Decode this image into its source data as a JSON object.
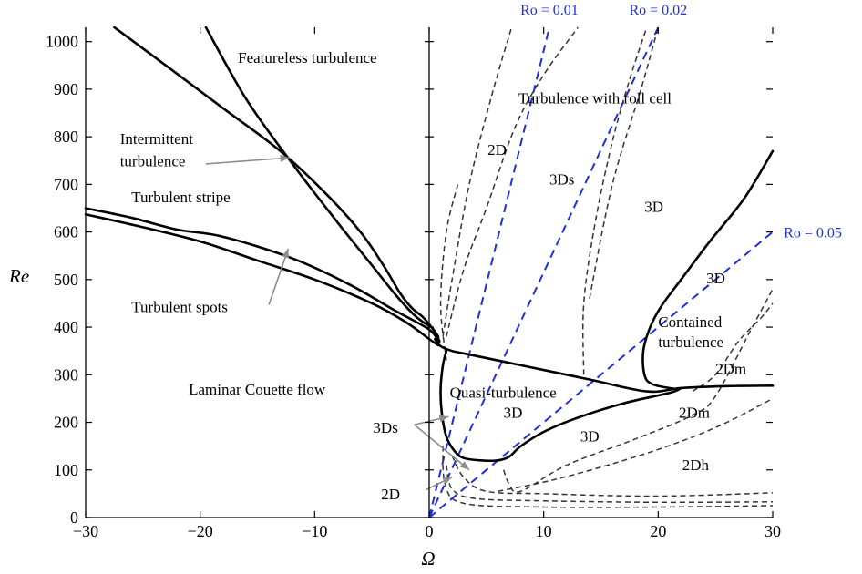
{
  "chart_data": {
    "type": "line",
    "title": "",
    "xlabel": "Ω",
    "ylabel": "Re",
    "xlim": [
      -30,
      30
    ],
    "ylim": [
      0,
      1030
    ],
    "x_ticks": [
      -30,
      -20,
      -10,
      0,
      10,
      20,
      30
    ],
    "x_tick_labels": [
      "−30",
      "−20",
      "−10",
      "0",
      "10",
      "20",
      "30"
    ],
    "y_ticks": [
      0,
      100,
      200,
      300,
      400,
      500,
      600,
      700,
      800,
      900,
      1000
    ],
    "y_tick_labels": [
      "0",
      "100",
      "200",
      "300",
      "400",
      "500",
      "600",
      "700",
      "800",
      "900",
      "1000"
    ],
    "grid": false,
    "colors": {
      "solid": "#000000",
      "dashed": "#333333",
      "ro": "#1f2fd6",
      "arrow": "#8c8c8c"
    },
    "solid_curves": [
      {
        "id": "intermittent-upper",
        "points": [
          [
            -19.5,
            1030
          ],
          [
            -16,
            880
          ],
          [
            -12,
            745
          ],
          [
            -8,
            620
          ],
          [
            -5,
            530
          ],
          [
            -3,
            470
          ],
          [
            -1.5,
            430
          ],
          [
            -0.5,
            410
          ],
          [
            0.2,
            400
          ],
          [
            0.8,
            380
          ]
        ]
      },
      {
        "id": "intermittent-lower",
        "points": [
          [
            -27.5,
            1030
          ],
          [
            -23,
            950
          ],
          [
            -18,
            860
          ],
          [
            -13,
            770
          ],
          [
            -9,
            680
          ],
          [
            -6,
            600
          ],
          [
            -4,
            530
          ],
          [
            -2.5,
            470
          ],
          [
            -1.5,
            440
          ],
          [
            -0.5,
            420
          ],
          [
            0.5,
            390
          ],
          [
            0.9,
            370
          ]
        ]
      },
      {
        "id": "stripe-upper",
        "points": [
          [
            -30,
            650
          ],
          [
            -26,
            630
          ],
          [
            -22,
            605
          ],
          [
            -18,
            590
          ],
          [
            -12,
            545
          ],
          [
            -7,
            490
          ],
          [
            -3,
            435
          ],
          [
            0,
            395
          ],
          [
            0.8,
            370
          ]
        ]
      },
      {
        "id": "stripe-lower",
        "points": [
          [
            -30,
            637
          ],
          [
            -25,
            610
          ],
          [
            -20,
            580
          ],
          [
            -15,
            540
          ],
          [
            -10,
            500
          ],
          [
            -5,
            450
          ],
          [
            -2,
            410
          ],
          [
            0,
            375
          ],
          [
            0.8,
            362
          ]
        ]
      },
      {
        "id": "quasi-upper",
        "points": [
          [
            0.5,
            375
          ],
          [
            1,
            360
          ],
          [
            2,
            350
          ],
          [
            3,
            345
          ],
          [
            8,
            320
          ],
          [
            14,
            290
          ],
          [
            19,
            265
          ],
          [
            22,
            272
          ],
          [
            26,
            276
          ],
          [
            30,
            277
          ]
        ]
      },
      {
        "id": "quasi-lower",
        "points": [
          [
            1.5,
            350
          ],
          [
            1.2,
            320
          ],
          [
            1,
            270
          ],
          [
            1.1,
            220
          ],
          [
            1.5,
            170
          ],
          [
            2.2,
            140
          ],
          [
            3,
            125
          ],
          [
            4.5,
            120
          ],
          [
            6,
            120
          ],
          [
            7,
            128
          ],
          [
            8,
            150
          ],
          [
            10,
            180
          ],
          [
            13,
            210
          ],
          [
            17,
            240
          ],
          [
            21,
            262
          ],
          [
            22,
            272
          ]
        ]
      },
      {
        "id": "contained",
        "points": [
          [
            21.5,
            270
          ],
          [
            19.5,
            280
          ],
          [
            18.8,
            300
          ],
          [
            18.7,
            350
          ],
          [
            19.3,
            400
          ],
          [
            20.3,
            445
          ],
          [
            22,
            500
          ],
          [
            24.5,
            580
          ],
          [
            27.5,
            670
          ],
          [
            30,
            770
          ]
        ]
      }
    ],
    "dashed_curves": [
      {
        "id": "d1",
        "points": [
          [
            1.2,
            380
          ],
          [
            2,
            500
          ],
          [
            3.5,
            700
          ],
          [
            5.5,
            890
          ],
          [
            7.2,
            1030
          ]
        ]
      },
      {
        "id": "d2",
        "points": [
          [
            1.5,
            380
          ],
          [
            3,
            520
          ],
          [
            5,
            650
          ],
          [
            7.5,
            820
          ],
          [
            10,
            930
          ],
          [
            13,
            1030
          ]
        ]
      },
      {
        "id": "d3",
        "points": [
          [
            13.5,
            300
          ],
          [
            13.5,
            450
          ],
          [
            14.5,
            620
          ],
          [
            16,
            790
          ],
          [
            17.5,
            920
          ],
          [
            19,
            1030
          ]
        ]
      },
      {
        "id": "d4",
        "points": [
          [
            14,
            460
          ],
          [
            16,
            700
          ],
          [
            18.5,
            900
          ],
          [
            20,
            1030
          ]
        ]
      },
      {
        "id": "d5",
        "points": [
          [
            1.5,
            330
          ],
          [
            1,
            450
          ],
          [
            1.5,
            600
          ],
          [
            2.5,
            700
          ]
        ]
      },
      {
        "id": "d6",
        "points": [
          [
            6.5,
            100
          ],
          [
            7,
            70
          ],
          [
            8,
            55
          ],
          [
            12,
            110
          ],
          [
            18,
            165
          ],
          [
            23,
            215
          ],
          [
            25,
            255
          ],
          [
            28,
            390
          ],
          [
            30,
            480
          ]
        ]
      },
      {
        "id": "d7",
        "points": [
          [
            6,
            55
          ],
          [
            11,
            80
          ],
          [
            17,
            120
          ],
          [
            22,
            160
          ],
          [
            26,
            200
          ],
          [
            30,
            250
          ]
        ]
      },
      {
        "id": "d8",
        "points": [
          [
            2,
            130
          ],
          [
            3,
            85
          ],
          [
            5,
            55
          ],
          [
            10,
            50
          ],
          [
            20,
            45
          ],
          [
            30,
            52
          ]
        ]
      },
      {
        "id": "d9",
        "points": [
          [
            1.5,
            110
          ],
          [
            2,
            60
          ],
          [
            4,
            40
          ],
          [
            10,
            35
          ],
          [
            20,
            32
          ],
          [
            30,
            33
          ]
        ]
      },
      {
        "id": "d10",
        "points": [
          [
            1.2,
            150
          ],
          [
            1.4,
            70
          ],
          [
            3,
            30
          ],
          [
            10,
            22
          ],
          [
            20,
            22
          ],
          [
            30,
            25
          ]
        ]
      },
      {
        "id": "d11",
        "points": [
          [
            23,
            265
          ],
          [
            25,
            300
          ],
          [
            27,
            370
          ],
          [
            29,
            420
          ],
          [
            30,
            450
          ]
        ]
      }
    ],
    "ro_lines": [
      {
        "name": "Ro = 0.01",
        "label": "Ro = 0.01",
        "end": [
          10.5,
          1030
        ]
      },
      {
        "name": "Ro = 0.02",
        "label": "Ro = 0.02",
        "end": [
          20,
          1030
        ]
      },
      {
        "name": "Ro = 0.05",
        "label": "Ro = 0.05",
        "end": [
          30,
          600
        ]
      }
    ],
    "region_labels": [
      {
        "text": "Featureless turbulence",
        "x": -16.7,
        "y": 955
      },
      {
        "text": "Intermittent",
        "x": -27,
        "y": 785
      },
      {
        "text": "turbulence",
        "x": -27,
        "y": 738
      },
      {
        "text": "Turbulent stripe",
        "x": -26,
        "y": 662
      },
      {
        "text": "Turbulent spots",
        "x": -26,
        "y": 432
      },
      {
        "text": "Laminar Couette flow",
        "x": -21,
        "y": 258
      },
      {
        "text": "Turbulence with roll cell",
        "x": 7.8,
        "y": 870
      },
      {
        "text": "2D",
        "x": 5.1,
        "y": 762
      },
      {
        "text": "3Ds",
        "x": 10.5,
        "y": 700
      },
      {
        "text": "3D",
        "x": 18.8,
        "y": 642
      },
      {
        "text": "3D",
        "x": 24.2,
        "y": 492
      },
      {
        "text": "Contained",
        "x": 20,
        "y": 400
      },
      {
        "text": "turbulence",
        "x": 20,
        "y": 358
      },
      {
        "text": "2Dm",
        "x": 25,
        "y": 302
      },
      {
        "text": "Quasi-turbulence",
        "x": 1.8,
        "y": 252
      },
      {
        "text": "3D",
        "x": 6.5,
        "y": 210
      },
      {
        "text": "3D",
        "x": 13.2,
        "y": 160
      },
      {
        "text": "2Dm",
        "x": 21.8,
        "y": 210
      },
      {
        "text": "3Ds",
        "x": -4.9,
        "y": 178
      },
      {
        "text": "2Dh",
        "x": 22.1,
        "y": 100
      },
      {
        "text": "2D",
        "x": -4.2,
        "y": 38
      }
    ],
    "arrows": [
      {
        "from": [
          -19.5,
          743
        ],
        "to": [
          -12.2,
          756
        ]
      },
      {
        "from": [
          -14,
          447
        ],
        "to": [
          -12.3,
          565
        ]
      },
      {
        "from": [
          -1.3,
          195
        ],
        "to": [
          1.7,
          212
        ]
      },
      {
        "from": [
          -1.3,
          195
        ],
        "to": [
          3.5,
          100
        ]
      },
      {
        "from": [
          -0.3,
          58
        ],
        "to": [
          2,
          85
        ]
      }
    ]
  }
}
